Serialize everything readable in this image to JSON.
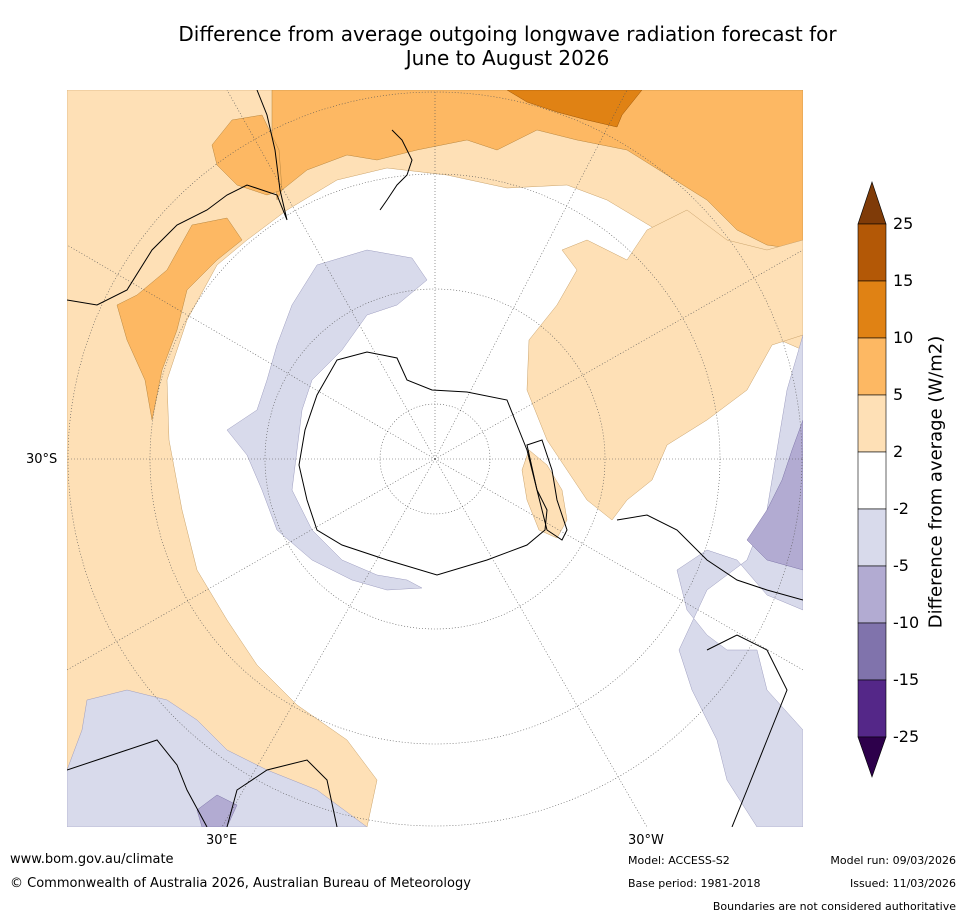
{
  "title_line1": "Difference from average outgoing longwave radiation forecast for",
  "title_line2": "June to August 2026",
  "map": {
    "projection": "south polar stereographic",
    "lat_label": "30°S",
    "lon_label_left": "30°E",
    "lon_label_right": "30°W"
  },
  "colorbar": {
    "label": "Difference from average (W/m2)",
    "ticks": [
      "25",
      "15",
      "10",
      "5",
      "2",
      "-2",
      "-5",
      "-10",
      "-15",
      "-25"
    ],
    "colors": [
      "#7f3b08",
      "#b35806",
      "#e08214",
      "#fdb863",
      "#fee0b6",
      "#ffffff",
      "#d8daeb",
      "#b2abd2",
      "#8073ac",
      "#542788",
      "#2d004b"
    ]
  },
  "footer": {
    "url": "www.bom.gov.au/climate",
    "copyright": "© Commonwealth of Australia 2026, Australian Bureau of Meteorology",
    "model": "Model: ACCESS-S2",
    "base_period": "Base period: 1981-2018",
    "model_run": "Model run: 09/03/2026",
    "issued": "Issued: 11/03/2026",
    "disclaimer": "Boundaries are not considered authoritative"
  }
}
